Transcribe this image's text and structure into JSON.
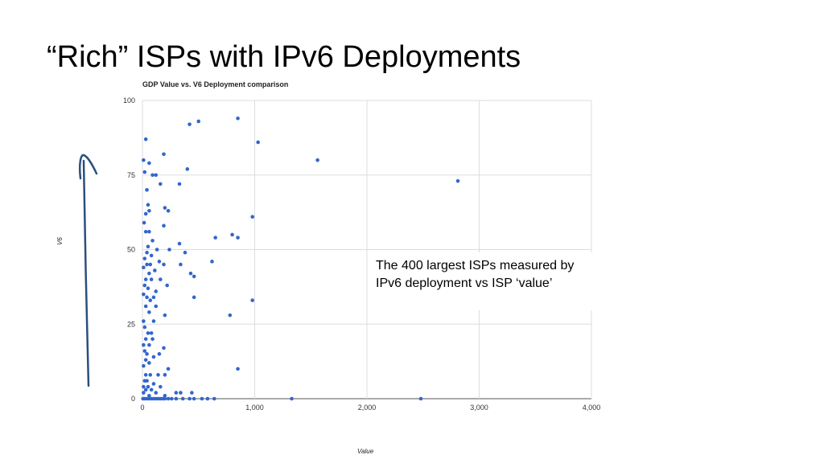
{
  "slide": {
    "title": "“Rich” ISPs with IPv6 Deployments",
    "annotation": "The 400 largest ISPs measured by IPv6 deployment vs ISP ‘value’"
  },
  "chart_data": {
    "type": "scatter",
    "title": "GDP Value vs. V6 Deployment comparison",
    "xlabel": "Value",
    "ylabel": "V6",
    "xlim": [
      0,
      4000
    ],
    "ylim": [
      0,
      100
    ],
    "xticks": [
      0,
      1000,
      2000,
      3000,
      4000
    ],
    "xtick_labels": [
      "0",
      "1,000",
      "2,000",
      "3,000",
      "4,000"
    ],
    "yticks": [
      0,
      25,
      50,
      75,
      100
    ],
    "ytick_labels": [
      "0",
      "25",
      "50",
      "75",
      "100"
    ],
    "grid": true,
    "marker_color": "#3366cc",
    "points": [
      [
        850,
        94
      ],
      [
        500,
        93
      ],
      [
        420,
        92
      ],
      [
        30,
        87
      ],
      [
        1030,
        86
      ],
      [
        190,
        82
      ],
      [
        1560,
        80
      ],
      [
        10,
        80
      ],
      [
        60,
        79
      ],
      [
        400,
        77
      ],
      [
        20,
        76
      ],
      [
        90,
        75
      ],
      [
        120,
        75
      ],
      [
        2810,
        73
      ],
      [
        330,
        72
      ],
      [
        160,
        72
      ],
      [
        40,
        70
      ],
      [
        50,
        65
      ],
      [
        200,
        64
      ],
      [
        230,
        63
      ],
      [
        60,
        63
      ],
      [
        30,
        62
      ],
      [
        980,
        61
      ],
      [
        15,
        59
      ],
      [
        190,
        58
      ],
      [
        30,
        56
      ],
      [
        60,
        56
      ],
      [
        650,
        54
      ],
      [
        800,
        55
      ],
      [
        850,
        54
      ],
      [
        90,
        53
      ],
      [
        330,
        52
      ],
      [
        50,
        51
      ],
      [
        130,
        50
      ],
      [
        240,
        50
      ],
      [
        380,
        49
      ],
      [
        40,
        49
      ],
      [
        80,
        48
      ],
      [
        20,
        47
      ],
      [
        150,
        46
      ],
      [
        620,
        46
      ],
      [
        40,
        45
      ],
      [
        70,
        45
      ],
      [
        190,
        45
      ],
      [
        340,
        45
      ],
      [
        10,
        44
      ],
      [
        60,
        42
      ],
      [
        110,
        43
      ],
      [
        430,
        42
      ],
      [
        460,
        41
      ],
      [
        30,
        40
      ],
      [
        80,
        40
      ],
      [
        160,
        40
      ],
      [
        220,
        38
      ],
      [
        20,
        38
      ],
      [
        50,
        37
      ],
      [
        120,
        36
      ],
      [
        10,
        35
      ],
      [
        40,
        34
      ],
      [
        100,
        34
      ],
      [
        460,
        34
      ],
      [
        980,
        33
      ],
      [
        70,
        33
      ],
      [
        30,
        31
      ],
      [
        120,
        31
      ],
      [
        60,
        29
      ],
      [
        200,
        28
      ],
      [
        780,
        28
      ],
      [
        10,
        26
      ],
      [
        100,
        26
      ],
      [
        20,
        24
      ],
      [
        50,
        22
      ],
      [
        80,
        22
      ],
      [
        30,
        20
      ],
      [
        90,
        20
      ],
      [
        10,
        18
      ],
      [
        60,
        18
      ],
      [
        20,
        16
      ],
      [
        40,
        15
      ],
      [
        190,
        17
      ],
      [
        100,
        14
      ],
      [
        150,
        15
      ],
      [
        30,
        13
      ],
      [
        60,
        12
      ],
      [
        10,
        11
      ],
      [
        230,
        10
      ],
      [
        850,
        10
      ],
      [
        30,
        8
      ],
      [
        70,
        8
      ],
      [
        140,
        8
      ],
      [
        200,
        8
      ],
      [
        20,
        6
      ],
      [
        40,
        6
      ],
      [
        100,
        5
      ],
      [
        10,
        4
      ],
      [
        50,
        4
      ],
      [
        160,
        4
      ],
      [
        30,
        3
      ],
      [
        80,
        3
      ],
      [
        120,
        2
      ],
      [
        300,
        2
      ],
      [
        340,
        2
      ],
      [
        440,
        2
      ],
      [
        10,
        2
      ],
      [
        60,
        1
      ],
      [
        200,
        1
      ],
      [
        5,
        0
      ],
      [
        20,
        0
      ],
      [
        40,
        0
      ],
      [
        60,
        0
      ],
      [
        80,
        0
      ],
      [
        100,
        0
      ],
      [
        120,
        0
      ],
      [
        140,
        0
      ],
      [
        160,
        0
      ],
      [
        180,
        0
      ],
      [
        200,
        0
      ],
      [
        230,
        0
      ],
      [
        260,
        0
      ],
      [
        300,
        0
      ],
      [
        360,
        0
      ],
      [
        420,
        0
      ],
      [
        460,
        0
      ],
      [
        530,
        0
      ],
      [
        580,
        0
      ],
      [
        640,
        0
      ],
      [
        1330,
        0
      ],
      [
        2480,
        0
      ]
    ]
  },
  "colors": {
    "grid": "#dddddd",
    "axis": "#555555",
    "arrow": "#2b4f7e"
  }
}
